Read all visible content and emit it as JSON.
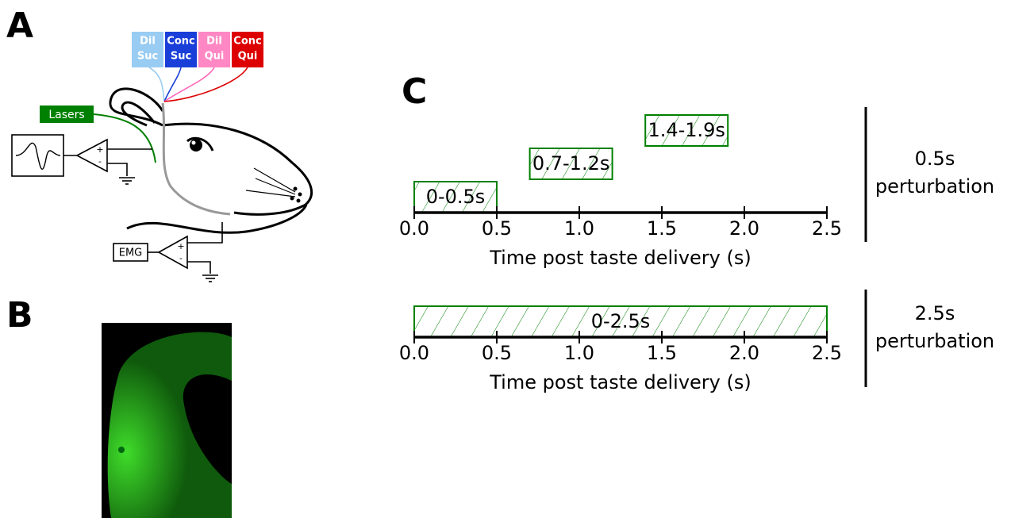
{
  "panels": {
    "a": "A",
    "b": "B",
    "c": "C"
  },
  "diagram": {
    "tastes": [
      {
        "label": [
          "Dil",
          "Suc"
        ],
        "color": "#99ccf2"
      },
      {
        "label": [
          "Conc",
          "Suc"
        ],
        "color": "#1a3fd9"
      },
      {
        "label": [
          "Dil",
          "Qui"
        ],
        "color": "#ff88c4"
      },
      {
        "label": [
          "Conc",
          "Qui"
        ],
        "color": "#dd0000"
      }
    ],
    "lasers": "Lasers",
    "emg": "EMG",
    "amp_signs": [
      "+",
      "-"
    ]
  },
  "chart_data": [
    {
      "type": "interval",
      "xlabel": "Time post taste delivery (s)",
      "xlim": [
        0,
        2.5
      ],
      "xticks": [
        {
          "value": 0,
          "label": "0.0"
        },
        0.5,
        {
          "value": 1,
          "label": "1.0"
        },
        1.5,
        {
          "value": 2,
          "label": "2.0"
        },
        2.5
      ],
      "color": "#008000",
      "intervals": [
        {
          "label": "0-0.5s",
          "start": 0,
          "end": 0.5
        },
        {
          "label": "0.7-1.2s",
          "start": 0.7,
          "end": 1.2
        },
        {
          "label": "1.4-1.9s",
          "start": 1.4,
          "end": 1.9
        }
      ],
      "side_label": [
        "0.5s",
        "perturbation"
      ]
    },
    {
      "type": "interval",
      "xlabel": "Time post taste delivery (s)",
      "xlim": [
        0,
        2.5
      ],
      "xticks": [
        {
          "value": 0,
          "label": "0.0"
        },
        0.5,
        {
          "value": 1,
          "label": "1.0"
        },
        1.5,
        {
          "value": 2,
          "label": "2.0"
        },
        2.5
      ],
      "color": "#008000",
      "intervals": [
        {
          "label": "0-2.5s",
          "start": 0,
          "end": 2.5
        }
      ],
      "side_label": [
        "2.5s",
        "perturbation"
      ]
    }
  ]
}
